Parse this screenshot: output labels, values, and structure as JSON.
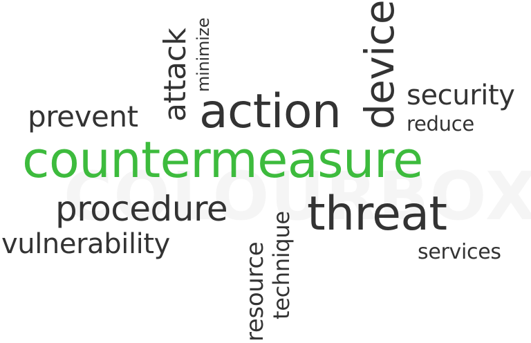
{
  "colors": {
    "word": "#333333",
    "accent": "#3dbb3d",
    "background": "#ffffff"
  },
  "words": {
    "countermeasure": "countermeasure",
    "action": "action",
    "threat": "threat",
    "procedure": "procedure",
    "device": "device",
    "security": "security",
    "prevent": "prevent",
    "vulnerability": "vulnerability",
    "attack": "attack",
    "minimize": "minimize",
    "reduce": "reduce",
    "resource": "resource",
    "technique": "technique",
    "services": "services"
  },
  "watermark": "COLOURBOX"
}
